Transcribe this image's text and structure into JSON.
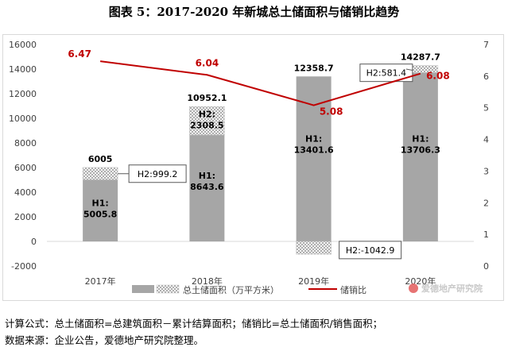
{
  "title": "图表 5：2017-2020 年新城总土储面积与储销比趋势",
  "notes": {
    "formula": "计算公式：总土储面积=总建筑面积－累计结算面积；储销比=总土储面积/销售面积；",
    "source": "数据来源：企业公告，爱德地产研究院整理。"
  },
  "watermark": "爱德地产研究院",
  "colors": {
    "bar": "#a6a6a6",
    "hatch": "#7f7f7f",
    "line": "#c00000",
    "line_label": "#c00000"
  },
  "chart_data": {
    "type": "bar",
    "categories": [
      "2017年",
      "2018年",
      "2019年",
      "2020年"
    ],
    "series": [
      {
        "name": "总土储面积（万平方米）",
        "kind": "stacked-bar",
        "h1": [
          5005.8,
          8643.6,
          13401.6,
          13706.3
        ],
        "h2": [
          999.2,
          2308.5,
          -1042.9,
          581.4
        ],
        "totals": [
          6005,
          10952.1,
          12358.7,
          14287.7
        ],
        "h1_labels": [
          "H1:\n5005.8",
          "H1:\n8643.6",
          "H1:\n13401.6",
          "H1:\n13706.3"
        ],
        "h2_labels": [
          "H2:999.2",
          "H2:\n2308.5",
          "H2:-1042.9",
          "H2:581.4"
        ],
        "total_labels": [
          "6005",
          "10952.1",
          "12358.7",
          "14287.7"
        ]
      },
      {
        "name": "储销比",
        "kind": "line",
        "axis": "right",
        "values": [
          6.47,
          6.04,
          5.08,
          6.08
        ],
        "labels": [
          "6.47",
          "6.04",
          "5.08",
          "6.08"
        ]
      }
    ],
    "y_left": {
      "min": -2000,
      "max": 16000,
      "step": 2000,
      "ticks": [
        "-2000",
        "0",
        "2000",
        "4000",
        "6000",
        "8000",
        "10000",
        "12000",
        "14000",
        "16000"
      ]
    },
    "y_right": {
      "min": 0,
      "max": 7,
      "step": 1,
      "ticks": [
        "0",
        "1",
        "2",
        "3",
        "4",
        "5",
        "6",
        "7"
      ]
    },
    "grid": false,
    "legend": "bottom-center"
  }
}
